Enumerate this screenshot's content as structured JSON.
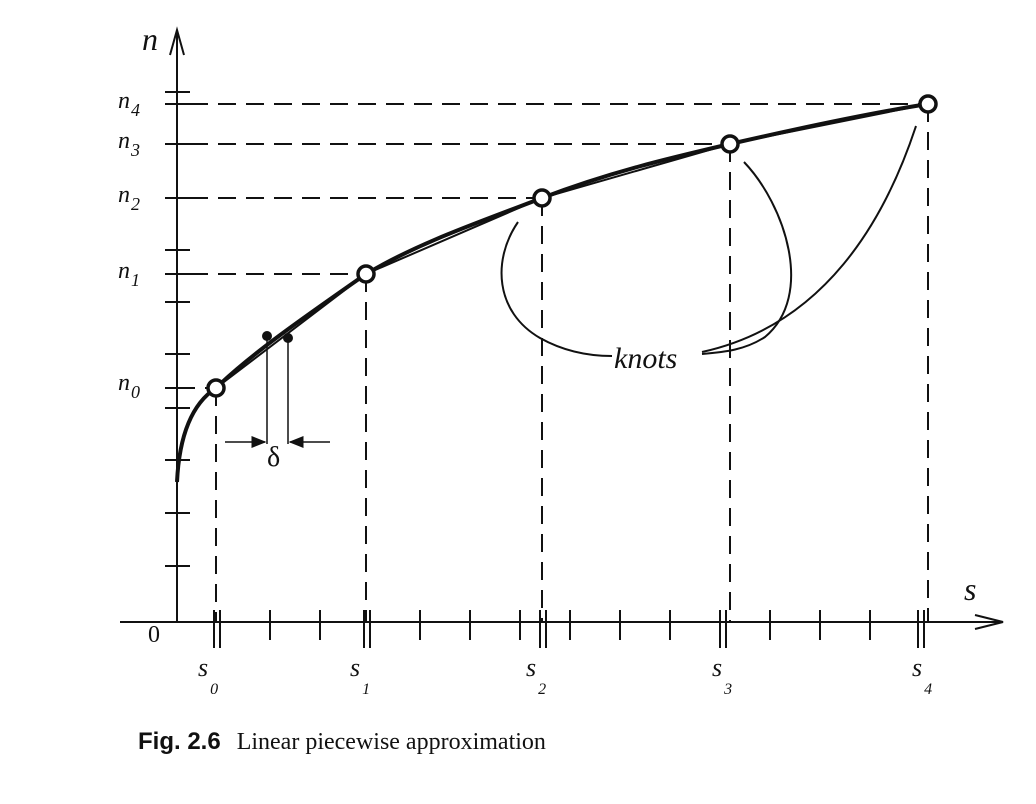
{
  "figure": {
    "y_axis_label": "n",
    "x_axis_label": "s",
    "origin_label": "0",
    "y_knot_labels": [
      {
        "base": "n",
        "sub": "0"
      },
      {
        "base": "n",
        "sub": "1"
      },
      {
        "base": "n",
        "sub": "2"
      },
      {
        "base": "n",
        "sub": "3"
      },
      {
        "base": "n",
        "sub": "4"
      }
    ],
    "x_knot_labels": [
      {
        "base": "s",
        "sub": "0"
      },
      {
        "base": "s",
        "sub": "1"
      },
      {
        "base": "s",
        "sub": "2"
      },
      {
        "base": "s",
        "sub": "3"
      },
      {
        "base": "s",
        "sub": "4"
      }
    ],
    "knots_label": "knots",
    "delta_label": "δ"
  },
  "caption": {
    "number": "Fig. 2.6",
    "text": "Linear piecewise approximation"
  }
}
